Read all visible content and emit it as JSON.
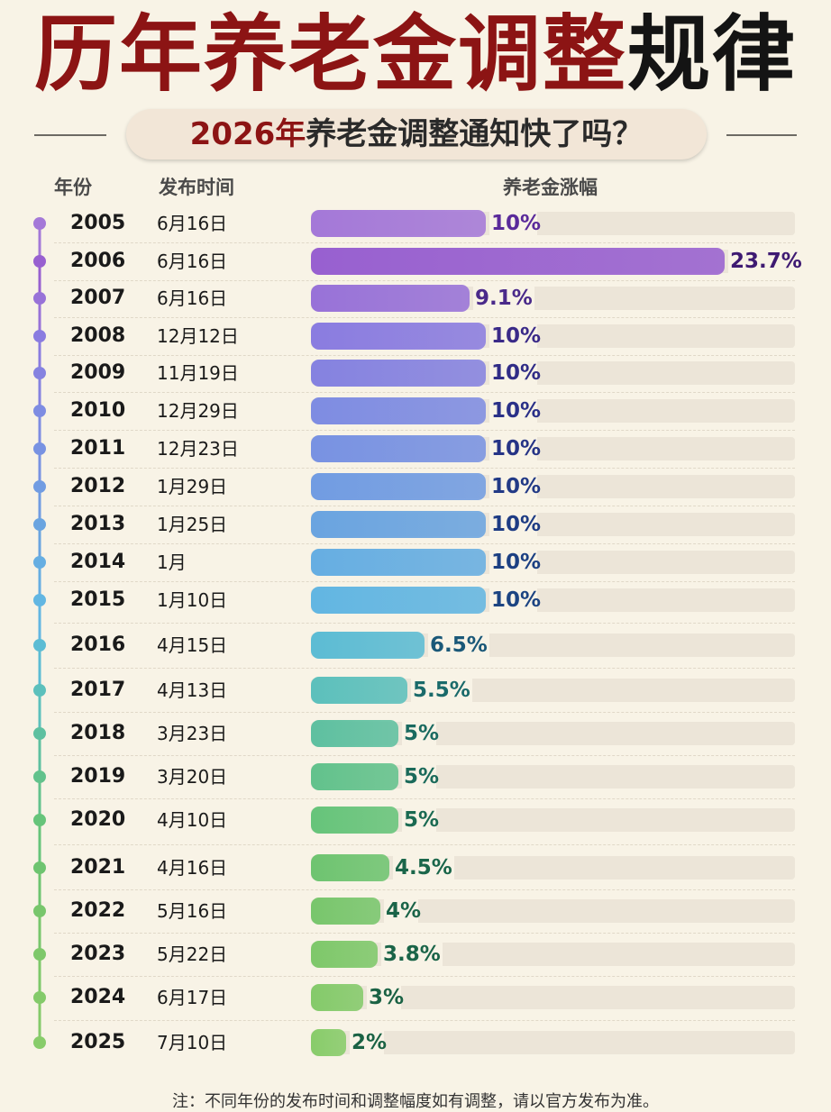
{
  "title": {
    "part_red": "历年养老金调整",
    "part_black": "规律"
  },
  "subtitle": {
    "year": "2026年",
    "text": "养老金调整通知快了吗？"
  },
  "headers": {
    "year": "年份",
    "date": "发布时间",
    "increase": "养老金涨幅"
  },
  "chart_data": {
    "type": "bar",
    "orientation": "horizontal",
    "categories": [
      "2005",
      "2006",
      "2007",
      "2008",
      "2009",
      "2010",
      "2011",
      "2012",
      "2013",
      "2014",
      "2015",
      "2016",
      "2017",
      "2018",
      "2019",
      "2020",
      "2021",
      "2022",
      "2023",
      "2024",
      "2025"
    ],
    "dates": [
      "6月16日",
      "6月16日",
      "6月16日",
      "12月12日",
      "11月19日",
      "12月29日",
      "12月23日",
      "1月29日",
      "1月25日",
      "1月",
      "1月10日",
      "4月15日",
      "4月13日",
      "3月23日",
      "3月20日",
      "4月10日",
      "4月16日",
      "5月16日",
      "5月22日",
      "6月17日",
      "7月10日"
    ],
    "values": [
      10,
      23.7,
      9.1,
      10,
      10,
      10,
      10,
      10,
      10,
      10,
      10,
      6.5,
      5.5,
      5,
      5,
      5,
      4.5,
      4,
      3.8,
      3,
      2
    ],
    "labels": [
      "10%",
      "23.7%",
      "9.1%",
      "10%",
      "10%",
      "10%",
      "10%",
      "10%",
      "10%",
      "10%",
      "10%",
      "6.5%",
      "5.5%",
      "5%",
      "5%",
      "5%",
      "4.5%",
      "4%",
      "3.8%",
      "3%",
      "2%"
    ],
    "xlim": [
      0,
      23.7
    ],
    "grid": false,
    "legend": "none"
  },
  "colors": {
    "bars": [
      "#a478d8",
      "#9860d0",
      "#9872d8",
      "#8a7ce0",
      "#8582e0",
      "#7e8ce2",
      "#7892e2",
      "#719ce2",
      "#6aa4e0",
      "#66aee2",
      "#62b6e2",
      "#5cbcd4",
      "#5cc0bc",
      "#5ec0a0",
      "#62c28c",
      "#66c47a",
      "#6ec470",
      "#78c66c",
      "#7ec86a",
      "#84ca6a",
      "#88cc6a"
    ],
    "labels": [
      "#5a2a9a",
      "#3e1a72",
      "#4a2a8a",
      "#3a2a88",
      "#302c86",
      "#2a3088",
      "#263486",
      "#223a86",
      "#1e3c84",
      "#1c4082",
      "#1c4482",
      "#1a5878",
      "#1a6a6a",
      "#1a6a60",
      "#1a6a5a",
      "#1a6a52",
      "#1a664a",
      "#1a6448",
      "#1a6448",
      "#1a6244",
      "#1a6244"
    ],
    "title_red": "#8c1414"
  },
  "note": "注：不同年份的发布时间和调整幅度如有调整，请以官方发布为准。"
}
